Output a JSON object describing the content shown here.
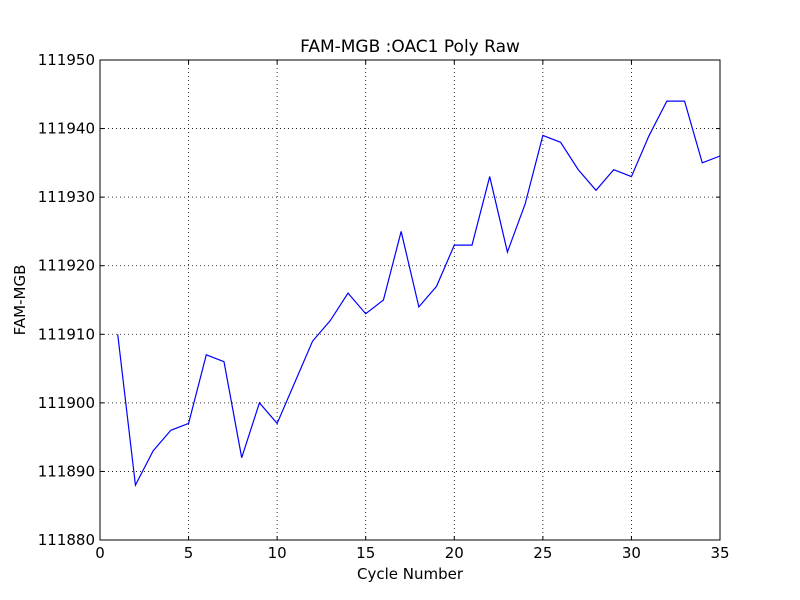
{
  "chart_data": {
    "type": "line",
    "title": "FAM-MGB :OAC1 Poly Raw",
    "xlabel": "Cycle Number",
    "ylabel": "FAM-MGB",
    "xlim": [
      0,
      35
    ],
    "ylim": [
      111880,
      111950
    ],
    "xticks": [
      0,
      5,
      10,
      15,
      20,
      25,
      30,
      35
    ],
    "yticks": [
      111880,
      111890,
      111900,
      111910,
      111920,
      111930,
      111940,
      111950
    ],
    "grid": true,
    "series_color": "#0000ff",
    "series": [
      {
        "x": [
          1,
          2,
          3,
          4,
          5,
          6,
          7,
          8,
          9,
          10,
          11,
          12,
          13,
          14,
          15,
          16,
          17,
          18,
          19,
          20,
          21,
          22,
          23,
          24,
          25,
          26,
          27,
          28,
          29,
          30,
          31,
          32,
          33,
          34,
          35
        ],
        "values": [
          111910,
          111888,
          111893,
          111896,
          111897,
          111907,
          111906,
          111892,
          111900,
          111897,
          111903,
          111909,
          111912,
          111916,
          111913,
          111915,
          111925,
          111914,
          111917,
          111923,
          111923,
          111933,
          111922,
          111929,
          111939,
          111938,
          111934,
          111931,
          111934,
          111933,
          111939,
          111944,
          111944,
          111935,
          111936
        ]
      }
    ]
  }
}
